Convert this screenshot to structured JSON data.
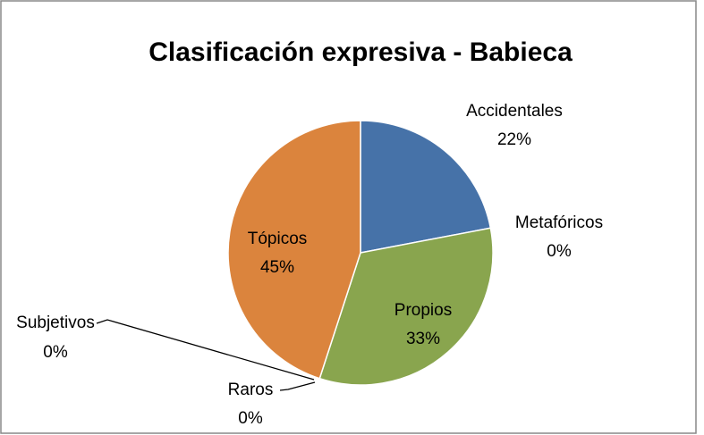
{
  "chart_data": {
    "type": "pie",
    "title": "Clasificación expresiva - Babieca",
    "categories": [
      "Accidentales",
      "Metafóricos",
      "Propios",
      "Raros",
      "Subjetivos",
      "Tópicos"
    ],
    "values": [
      22,
      0,
      33,
      0,
      0,
      45
    ],
    "value_labels": [
      "22%",
      "0%",
      "33%",
      "0%",
      "0%",
      "45%"
    ],
    "colors": [
      "#4672a8",
      "#aa4643",
      "#89a54e",
      "#71588f",
      "#4198af",
      "#db843d"
    ]
  }
}
